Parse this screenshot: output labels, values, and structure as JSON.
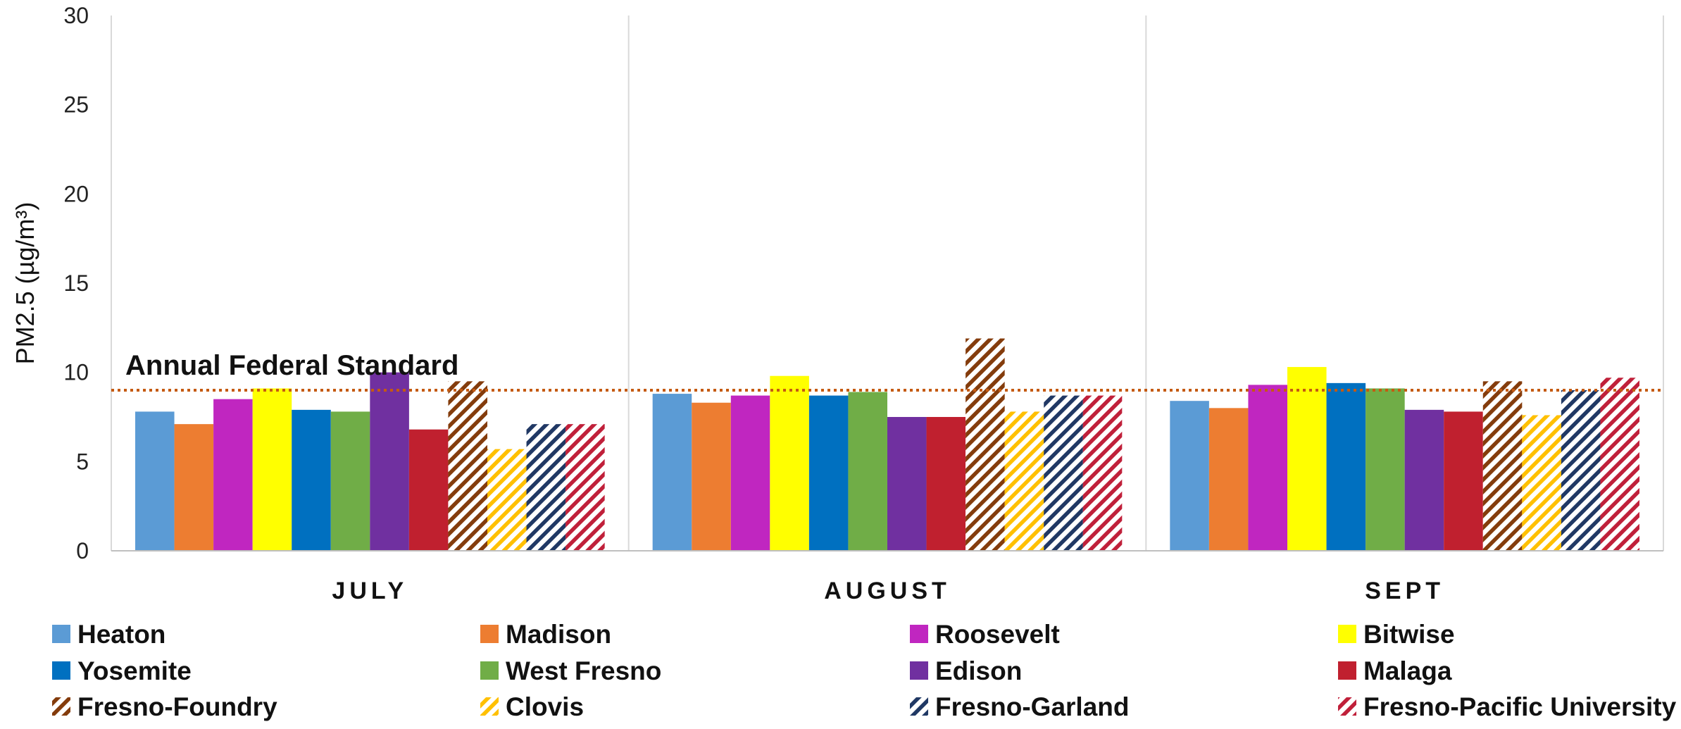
{
  "chart_data": {
    "type": "bar",
    "categories": [
      "JULY",
      "AUGUST",
      "SEPT"
    ],
    "ylabel": "PM2.5 (µg/m³)",
    "ylim": [
      0,
      30
    ],
    "yticks": [
      0,
      5,
      10,
      15,
      20,
      25,
      30
    ],
    "grid": "vertical separators between categories",
    "legend_placement": "bottom",
    "reference_line": {
      "label": "Annual Federal Standard",
      "value": 9,
      "color": "#c55a11",
      "style": "dotted"
    },
    "series": [
      {
        "name": "Heaton",
        "color": "#5b9bd5",
        "pattern": "solid",
        "values": [
          7.8,
          8.8,
          8.4
        ]
      },
      {
        "name": "Madison",
        "color": "#ed7d31",
        "pattern": "solid",
        "values": [
          7.1,
          8.3,
          8.0
        ]
      },
      {
        "name": "Roosevelt",
        "color": "#c026c0",
        "pattern": "solid",
        "values": [
          8.5,
          8.7,
          9.3
        ]
      },
      {
        "name": "Bitwise",
        "color": "#ffff00",
        "pattern": "solid",
        "values": [
          9.1,
          9.8,
          10.3
        ]
      },
      {
        "name": "Yosemite",
        "color": "#0070c0",
        "pattern": "solid",
        "values": [
          7.9,
          8.7,
          9.4
        ]
      },
      {
        "name": "West Fresno",
        "color": "#70ad47",
        "pattern": "solid",
        "values": [
          7.8,
          8.9,
          9.1
        ]
      },
      {
        "name": "Edison",
        "color": "#7030a0",
        "pattern": "solid",
        "values": [
          10.0,
          7.5,
          7.9
        ]
      },
      {
        "name": "Malaga",
        "color": "#c0202f",
        "pattern": "solid",
        "values": [
          6.8,
          7.5,
          7.8
        ]
      },
      {
        "name": "Fresno-Foundry",
        "color": "#843c0c",
        "pattern": "hatch",
        "values": [
          9.5,
          11.9,
          9.5
        ]
      },
      {
        "name": "Clovis",
        "color": "#ffc000",
        "pattern": "hatch",
        "values": [
          5.7,
          7.8,
          7.6
        ]
      },
      {
        "name": "Fresno-Garland",
        "color": "#203864",
        "pattern": "hatch",
        "values": [
          7.1,
          8.7,
          9.0
        ]
      },
      {
        "name": "Fresno-Pacific University",
        "color": "#c0203a",
        "pattern": "hatch",
        "values": [
          7.1,
          8.7,
          9.7
        ]
      }
    ]
  }
}
